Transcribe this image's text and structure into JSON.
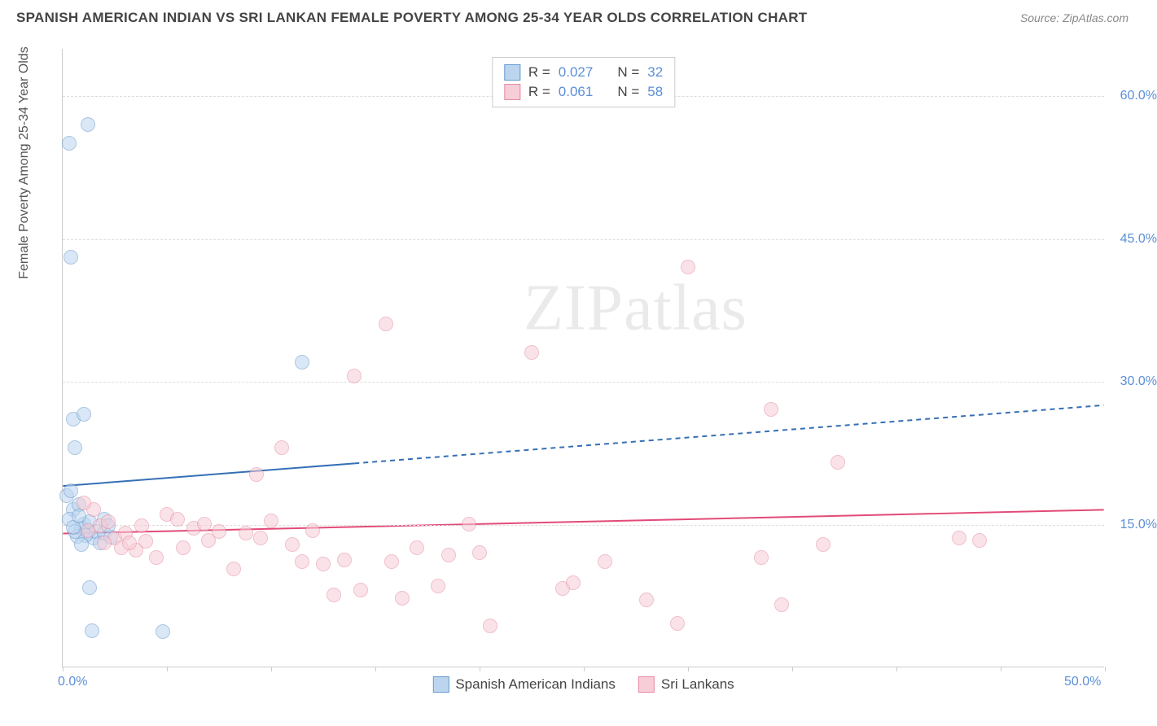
{
  "header": {
    "title": "SPANISH AMERICAN INDIAN VS SRI LANKAN FEMALE POVERTY AMONG 25-34 YEAR OLDS CORRELATION CHART",
    "source": "Source: ZipAtlas.com"
  },
  "watermark": {
    "part1": "ZIP",
    "part2": "atlas"
  },
  "chart": {
    "type": "scatter",
    "background_color": "#ffffff",
    "grid_color": "#dddddd",
    "axis_color": "#cccccc",
    "text_color": "#555555",
    "tick_label_color": "#5b8fd6",
    "tick_fontsize": 16,
    "label_fontsize": 16,
    "ylabel": "Female Poverty Among 25-34 Year Olds",
    "xlim": [
      0,
      50
    ],
    "ylim": [
      0,
      65
    ],
    "y_ticks": [
      15,
      30,
      45,
      60
    ],
    "y_tick_labels": [
      "15.0%",
      "30.0%",
      "45.0%",
      "60.0%"
    ],
    "x_ticks": [
      0,
      5,
      10,
      15,
      20,
      25,
      30,
      35,
      40,
      45,
      50
    ],
    "x_tick_labels_shown": {
      "0": "0.0%",
      "50": "50.0%"
    },
    "marker_radius": 9,
    "marker_stroke_width": 1.5,
    "series": [
      {
        "name": "Spanish American Indians",
        "fill_color": "#bcd5ef",
        "stroke_color": "#6699cc",
        "fill_opacity": 0.55,
        "R": "0.027",
        "N": "32",
        "trend": {
          "y_start": 19.0,
          "y_end": 27.5,
          "solid_until_x": 14,
          "color": "#356fb5",
          "width": 2,
          "dash": "6,5"
        },
        "points": [
          [
            0.3,
            55
          ],
          [
            1.2,
            57
          ],
          [
            0.4,
            43
          ],
          [
            0.5,
            26
          ],
          [
            1.0,
            26.5
          ],
          [
            0.6,
            23
          ],
          [
            0.2,
            18
          ],
          [
            0.4,
            18.5
          ],
          [
            0.5,
            16.5
          ],
          [
            0.8,
            17
          ],
          [
            0.3,
            15.5
          ],
          [
            1.0,
            15
          ],
          [
            0.9,
            14.5
          ],
          [
            1.2,
            14
          ],
          [
            1.3,
            15.2
          ],
          [
            1.5,
            13.5
          ],
          [
            1.6,
            14.2
          ],
          [
            1.8,
            13
          ],
          [
            1.1,
            13.8
          ],
          [
            0.7,
            13.7
          ],
          [
            0.6,
            14.2
          ],
          [
            0.9,
            12.8
          ],
          [
            2.0,
            14
          ],
          [
            2.3,
            13.6
          ],
          [
            1.3,
            8.3
          ],
          [
            1.4,
            3.8
          ],
          [
            4.8,
            3.7
          ],
          [
            2.0,
            15.5
          ],
          [
            2.2,
            14.8
          ],
          [
            0.5,
            14.6
          ],
          [
            0.8,
            15.8
          ],
          [
            11.5,
            32
          ]
        ]
      },
      {
        "name": "Sri Lankans",
        "fill_color": "#f7cdd7",
        "stroke_color": "#e58ba3",
        "fill_opacity": 0.55,
        "R": "0.061",
        "N": "58",
        "trend": {
          "y_start": 14.0,
          "y_end": 16.5,
          "solid_until_x": 50,
          "color": "#e24a78",
          "width": 2,
          "dash": ""
        },
        "points": [
          [
            1.5,
            16.5
          ],
          [
            1.8,
            14.8
          ],
          [
            2.2,
            15.2
          ],
          [
            2.5,
            13.5
          ],
          [
            2.8,
            12.5
          ],
          [
            3.0,
            14
          ],
          [
            3.5,
            12.2
          ],
          [
            3.8,
            14.8
          ],
          [
            4.0,
            13.2
          ],
          [
            5.0,
            16
          ],
          [
            5.5,
            15.5
          ],
          [
            5.8,
            12.5
          ],
          [
            6.3,
            14.5
          ],
          [
            7.0,
            13.3
          ],
          [
            7.5,
            14.2
          ],
          [
            8.2,
            10.3
          ],
          [
            8.8,
            14
          ],
          [
            9.3,
            20.2
          ],
          [
            9.5,
            13.5
          ],
          [
            10.0,
            15.3
          ],
          [
            10.5,
            23
          ],
          [
            11.0,
            12.8
          ],
          [
            11.5,
            11
          ],
          [
            12.0,
            14.3
          ],
          [
            12.5,
            10.8
          ],
          [
            13.0,
            7.5
          ],
          [
            13.5,
            11.2
          ],
          [
            14.0,
            30.5
          ],
          [
            14.3,
            8
          ],
          [
            15.5,
            36
          ],
          [
            15.8,
            11
          ],
          [
            16.3,
            7.2
          ],
          [
            17.0,
            12.5
          ],
          [
            18.0,
            8.5
          ],
          [
            18.5,
            11.7
          ],
          [
            19.5,
            15
          ],
          [
            20.0,
            12
          ],
          [
            20.5,
            4.3
          ],
          [
            22.5,
            33
          ],
          [
            24.0,
            8.2
          ],
          [
            24.5,
            8.8
          ],
          [
            26.0,
            11
          ],
          [
            28.0,
            7
          ],
          [
            29.5,
            4.5
          ],
          [
            30.0,
            42
          ],
          [
            33.5,
            11.5
          ],
          [
            34.0,
            27
          ],
          [
            34.5,
            6.5
          ],
          [
            36.5,
            12.8
          ],
          [
            37.2,
            21.5
          ],
          [
            43.0,
            13.5
          ],
          [
            44.0,
            13.3
          ],
          [
            1.0,
            17.2
          ],
          [
            1.2,
            14.3
          ],
          [
            2.0,
            13.0
          ],
          [
            3.2,
            13
          ],
          [
            4.5,
            11.5
          ],
          [
            6.8,
            15
          ]
        ]
      }
    ],
    "legend_top": {
      "r_label": "R =",
      "n_label": "N ="
    },
    "legend_bottom": [
      {
        "label": "Spanish American Indians",
        "fill": "#bcd5ef",
        "stroke": "#6699cc"
      },
      {
        "label": "Sri Lankans",
        "fill": "#f7cdd7",
        "stroke": "#e58ba3"
      }
    ]
  }
}
